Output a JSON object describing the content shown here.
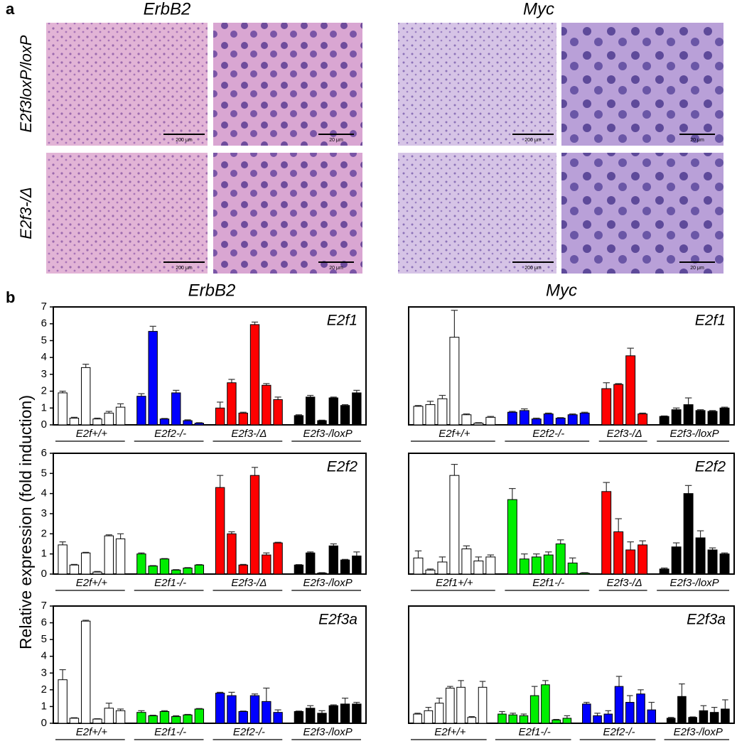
{
  "panel_a": {
    "label": "a",
    "columns": [
      "ErbB2",
      "Myc"
    ],
    "rows": [
      "E2f3loxP/loxP",
      "E2f3-/Δ"
    ],
    "scale_bars": [
      "200 μm",
      "20 μm"
    ]
  },
  "panel_b": {
    "label": "b",
    "columns": [
      "ErbB2",
      "Myc"
    ],
    "y_label": "Relative expression (fold induction)"
  },
  "chart_data": [
    {
      "type": "bar",
      "title": "E2f1",
      "ylim": [
        0,
        7
      ],
      "yticks": [
        0,
        1,
        2,
        3,
        4,
        5,
        6,
        7
      ],
      "series": [
        {
          "name": "E2f+/+",
          "color": "#ffffff",
          "values": [
            1.9,
            0.4,
            3.4,
            0.35,
            0.7,
            1.05
          ],
          "errors": [
            0.1,
            0.05,
            0.2,
            0.05,
            0.1,
            0.2
          ]
        },
        {
          "name": "E2f2-/-",
          "color": "#0000ff",
          "values": [
            1.7,
            5.55,
            0.35,
            1.9,
            0.25,
            0.1
          ],
          "errors": [
            0.15,
            0.3,
            0.03,
            0.15,
            0.05,
            0.03
          ]
        },
        {
          "name": "E2f3-/Δ",
          "color": "#ff0000",
          "values": [
            1.0,
            2.5,
            0.7,
            5.95,
            2.35,
            1.5
          ],
          "errors": [
            0.35,
            0.2,
            0.05,
            0.15,
            0.1,
            0.15
          ]
        },
        {
          "name": "E2f3-/loxP",
          "color": "#000000",
          "values": [
            0.55,
            1.65,
            0.25,
            1.6,
            1.15,
            1.9
          ],
          "errors": [
            0.05,
            0.1,
            0.03,
            0.05,
            0.05,
            0.15
          ]
        }
      ]
    },
    {
      "type": "bar",
      "title": "E2f1",
      "ylim": [
        0,
        7
      ],
      "series": [
        {
          "name": "E2f+/+",
          "color": "#ffffff",
          "values": [
            1.1,
            1.2,
            1.55,
            5.2,
            0.6,
            0.1,
            0.45
          ],
          "errors": [
            0.05,
            0.2,
            0.2,
            1.6,
            0.05,
            0.03,
            0.05
          ]
        },
        {
          "name": "E2f2-/-",
          "color": "#0000ff",
          "values": [
            0.75,
            0.85,
            0.35,
            0.65,
            0.4,
            0.6,
            0.7
          ],
          "errors": [
            0.05,
            0.1,
            0.05,
            0.05,
            0.03,
            0.05,
            0.05
          ]
        },
        {
          "name": "E2f3-/Δ",
          "color": "#ff0000",
          "values": [
            2.15,
            2.4,
            4.1,
            0.65
          ],
          "errors": [
            0.35,
            0.05,
            0.45,
            0.05
          ]
        },
        {
          "name": "E2f3-/loxP",
          "color": "#000000",
          "values": [
            0.5,
            0.9,
            1.2,
            0.85,
            0.8,
            1.0
          ],
          "errors": [
            0.03,
            0.1,
            0.4,
            0.05,
            0.05,
            0.05
          ]
        }
      ]
    },
    {
      "type": "bar",
      "title": "E2f2",
      "ylim": [
        0,
        6
      ],
      "yticks": [
        0,
        1,
        2,
        3,
        4,
        5,
        6
      ],
      "series": [
        {
          "name": "E2f+/+",
          "color": "#ffffff",
          "values": [
            1.45,
            0.45,
            1.05,
            0.1,
            1.9,
            1.75
          ],
          "errors": [
            0.15,
            0.03,
            0.03,
            0.03,
            0.05,
            0.25
          ]
        },
        {
          "name": "E2f1-/-",
          "color": "#00ee00",
          "values": [
            1.0,
            0.4,
            0.75,
            0.2,
            0.3,
            0.45
          ],
          "errors": [
            0.05,
            0.02,
            0.02,
            0.02,
            0.02,
            0.02
          ]
        },
        {
          "name": "E2f3-/Δ",
          "color": "#ff0000",
          "values": [
            4.3,
            2.0,
            0.45,
            4.9,
            0.95,
            1.55
          ],
          "errors": [
            0.6,
            0.1,
            0.03,
            0.4,
            0.1,
            0.03
          ]
        },
        {
          "name": "E2f3-/loxP",
          "color": "#000000",
          "values": [
            0.45,
            1.05,
            0.05,
            1.4,
            0.7,
            0.9
          ],
          "errors": [
            0.02,
            0.05,
            0.02,
            0.1,
            0.03,
            0.2
          ]
        }
      ]
    },
    {
      "type": "bar",
      "title": "E2f2",
      "ylim": [
        0,
        6
      ],
      "series": [
        {
          "name": "E2f1+/+",
          "color": "#ffffff",
          "values": [
            0.8,
            0.2,
            0.6,
            4.9,
            1.25,
            0.65,
            0.85
          ],
          "errors": [
            0.35,
            0.05,
            0.25,
            0.55,
            0.15,
            0.2,
            0.1
          ]
        },
        {
          "name": "E2f1-/-",
          "color": "#00ee00",
          "values": [
            3.7,
            0.75,
            0.85,
            0.95,
            1.5,
            0.55,
            0.05
          ],
          "errors": [
            0.55,
            0.25,
            0.15,
            0.15,
            0.2,
            0.25,
            0.02
          ]
        },
        {
          "name": "E2f3-/Δ",
          "color": "#ff0000",
          "values": [
            4.1,
            2.1,
            1.2,
            1.45
          ],
          "errors": [
            0.45,
            0.65,
            0.4,
            0.2
          ]
        },
        {
          "name": "E2f3-/loxP",
          "color": "#000000",
          "values": [
            0.25,
            1.35,
            4.0,
            1.8,
            1.2,
            1.0
          ],
          "errors": [
            0.05,
            0.2,
            0.4,
            0.35,
            0.1,
            0.05
          ]
        }
      ]
    },
    {
      "type": "bar",
      "title": "E2f3a",
      "ylim": [
        0,
        7
      ],
      "yticks": [
        0,
        1,
        2,
        3,
        4,
        5,
        6,
        7
      ],
      "series": [
        {
          "name": "E2f+/+",
          "color": "#ffffff",
          "values": [
            2.6,
            0.3,
            6.1,
            0.25,
            0.9,
            0.75
          ],
          "errors": [
            0.6,
            0.03,
            0.05,
            0.02,
            0.3,
            0.1
          ]
        },
        {
          "name": "E2f1-/-",
          "color": "#00ee00",
          "values": [
            0.65,
            0.45,
            0.7,
            0.4,
            0.5,
            0.85
          ],
          "errors": [
            0.1,
            0.03,
            0.05,
            0.05,
            0.03,
            0.03
          ]
        },
        {
          "name": "E2f2-/-",
          "color": "#0000ff",
          "values": [
            1.8,
            1.65,
            0.7,
            1.65,
            1.3,
            0.65
          ],
          "errors": [
            0.05,
            0.2,
            0.03,
            0.1,
            0.8,
            0.15
          ]
        },
        {
          "name": "E2f3-/loxP",
          "color": "#000000",
          "values": [
            0.7,
            0.9,
            0.6,
            1.05,
            1.15,
            1.15
          ],
          "errors": [
            0.03,
            0.15,
            0.15,
            0.05,
            0.35,
            0.1
          ]
        }
      ]
    },
    {
      "type": "bar",
      "title": "E2f3a",
      "ylim": [
        0,
        7
      ],
      "series": [
        {
          "name": "E2f+/+",
          "color": "#ffffff",
          "values": [
            0.55,
            0.75,
            1.2,
            2.1,
            2.15,
            0.35,
            2.15
          ],
          "errors": [
            0.05,
            0.2,
            0.3,
            0.1,
            0.4,
            0.05,
            0.35
          ]
        },
        {
          "name": "E2f1-/-",
          "color": "#00ee00",
          "values": [
            0.55,
            0.5,
            0.45,
            1.65,
            2.3,
            0.2,
            0.3
          ],
          "errors": [
            0.15,
            0.1,
            0.1,
            0.55,
            0.25,
            0.03,
            0.15
          ]
        },
        {
          "name": "E2f2-/-",
          "color": "#0000ff",
          "values": [
            1.15,
            0.45,
            0.55,
            2.2,
            1.25,
            1.75,
            0.8
          ],
          "errors": [
            0.1,
            0.15,
            0.2,
            0.6,
            0.4,
            0.25,
            0.45
          ]
        },
        {
          "name": "E2f3-/loxP",
          "color": "#000000",
          "values": [
            0.3,
            1.6,
            0.35,
            0.75,
            0.65,
            0.85
          ],
          "errors": [
            0.05,
            0.75,
            0.03,
            0.3,
            0.3,
            0.55
          ]
        }
      ]
    }
  ]
}
